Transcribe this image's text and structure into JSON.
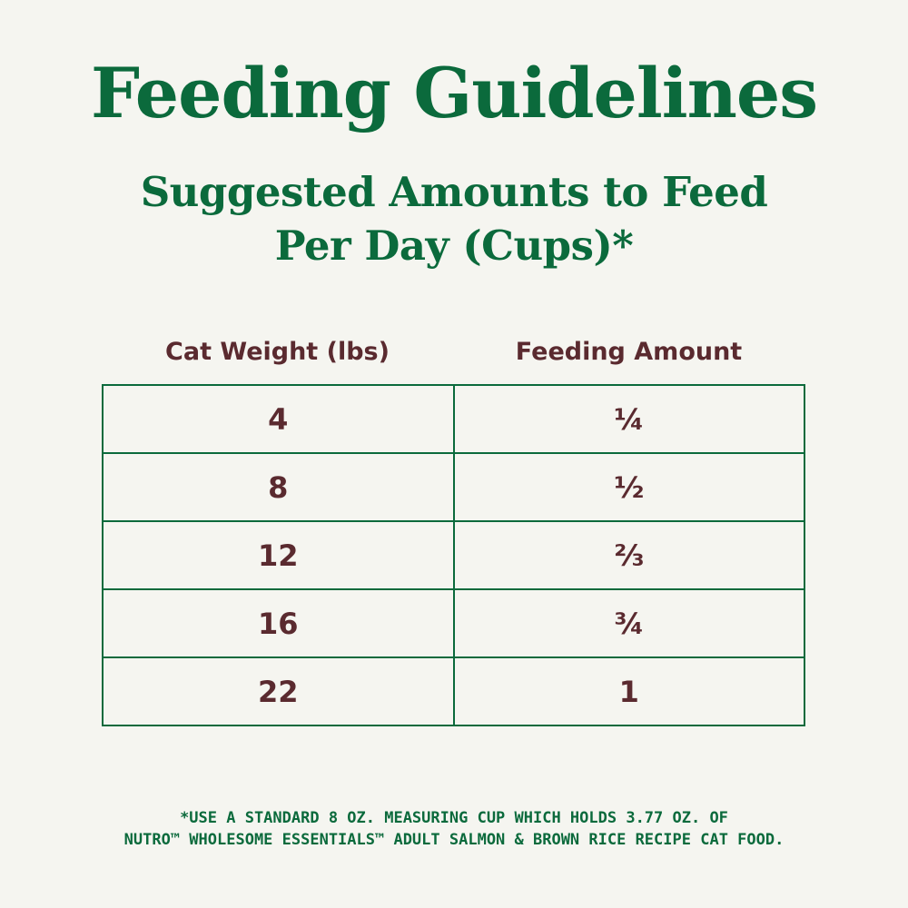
{
  "header": {
    "title": "Feeding Guidelines",
    "subtitle": [
      "Suggested Amounts to Feed",
      "Per Day (Cups)*"
    ]
  },
  "table": {
    "columns": [
      "Cat Weight (lbs)",
      "Feeding Amount"
    ],
    "rows": [
      [
        "4",
        "¼"
      ],
      [
        "8",
        "½"
      ],
      [
        "12",
        "⅔"
      ],
      [
        "16",
        "¾"
      ],
      [
        "22",
        "1"
      ]
    ]
  },
  "footnote": [
    "*USE A STANDARD 8 OZ. MEASURING CUP WHICH HOLDS 3.77 OZ. OF",
    "NUTRO™ WHOLESOME ESSENTIALS™ ADULT SALMON & BROWN RICE RECIPE CAT FOOD."
  ]
}
